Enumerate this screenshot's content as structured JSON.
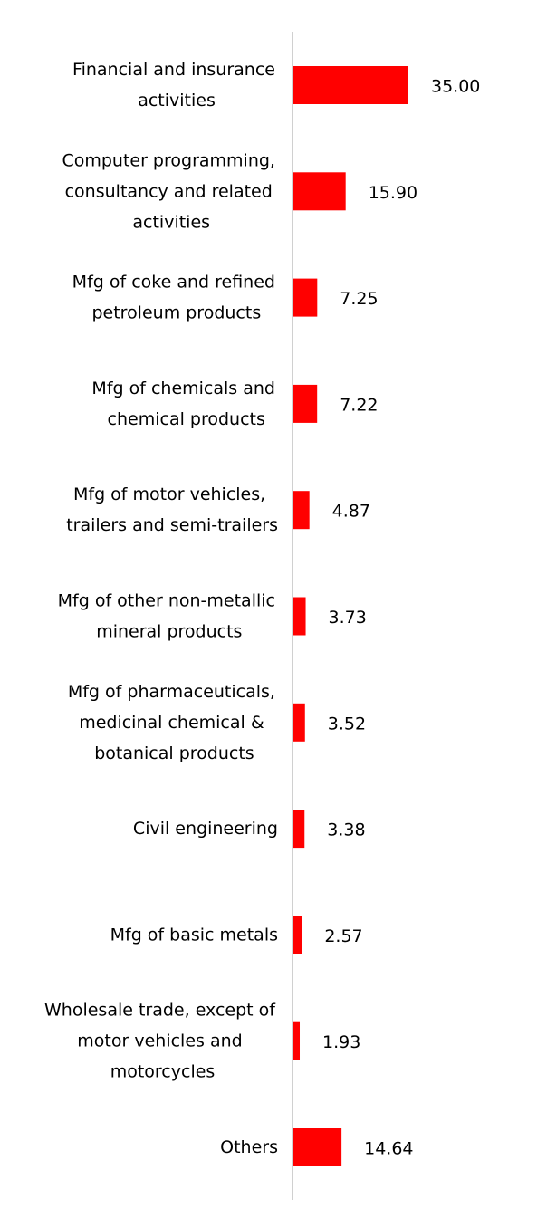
{
  "chart_data": {
    "type": "barh",
    "categories": [
      "Financial and insurance activities",
      "Computer programming, consultancy and related activities",
      "Mfg of coke and refined petroleum products",
      "Mfg of chemicals and chemical products",
      "Mfg of motor vehicles, trailers and semi-trailers",
      "Mfg of other non-metallic mineral products",
      "Mfg of pharmaceuticals, medicinal chemical & botanical products",
      "Civil engineering",
      "Mfg of basic metals",
      "Wholesale trade, except of motor vehicles and motorcycles",
      "Others"
    ],
    "values": [
      35,
      15.9,
      7.25,
      7.22,
      4.87,
      3.73,
      3.52,
      3.38,
      2.57,
      1.93,
      14.64
    ],
    "value_labels": [
      "35.00",
      "15.90",
      "7.25",
      "7.22",
      "4.87",
      "3.73",
      "3.52",
      "3.38",
      "2.57",
      "1.93",
      "14.64"
    ],
    "color": "#ff0000"
  }
}
